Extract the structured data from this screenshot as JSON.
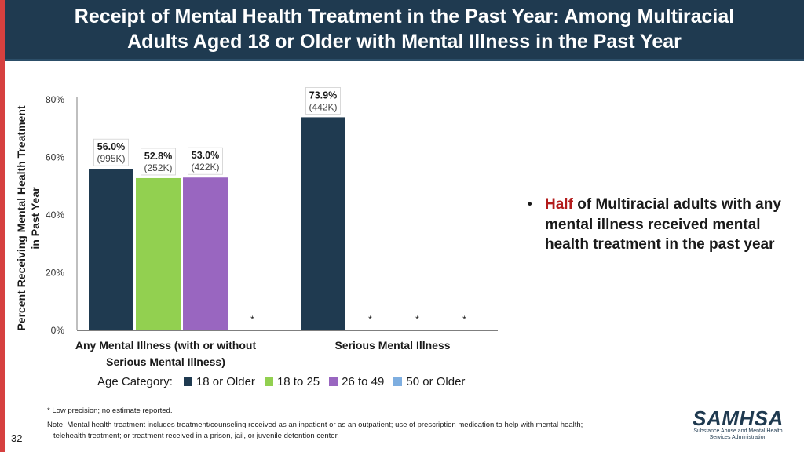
{
  "slide": {
    "title": "Receipt of Mental Health Treatment in the Past Year: Among Multiracial Adults Aged 18 or Older with Mental Illness in the Past Year",
    "page_number": "32",
    "bullet": {
      "highlight": "Half",
      "rest": "of Multiracial adults with any mental illness received mental health treatment in the past year"
    },
    "footnote": "* Low precision; no estimate reported.",
    "note_line1": "Note: Mental health treatment includes treatment/counseling received as an inpatient or as an outpatient; use of prescription medication to help with mental health;",
    "note_line2": "telehealth treatment; or treatment received in a prison, jail, or juvenile detention center.",
    "logo": {
      "wordmark": "SAMHSA",
      "tagline_line1": "Substance Abuse and Mental Health",
      "tagline_line2": "Services Administration"
    }
  },
  "chart_data": {
    "type": "bar",
    "title": "",
    "ylabel_line1": "Percent Receiving Mental Health Treatment",
    "ylabel_line2": "in Past Year",
    "xlabel": "",
    "ylim": [
      0,
      80
    ],
    "yticks": [
      0,
      20,
      40,
      60,
      80
    ],
    "ytick_labels": [
      "0%",
      "20%",
      "40%",
      "60%",
      "80%"
    ],
    "grid": false,
    "legend_title": "Age Category:",
    "legend_position": "bottom",
    "categories": [
      {
        "line1": "Any Mental Illness (with or without",
        "line2": "Serious Mental Illness)"
      },
      {
        "line1": "Serious Mental Illness",
        "line2": ""
      }
    ],
    "series": [
      {
        "name": "18 or Older",
        "color": "#1f3a50",
        "values": [
          56.0,
          73.9
        ],
        "value_labels": [
          "56.0%",
          "73.9%"
        ],
        "count_labels": [
          "(995K)",
          "(442K)"
        ],
        "suppressed": [
          false,
          false
        ]
      },
      {
        "name": "18 to 25",
        "color": "#92d050",
        "values": [
          52.8,
          null
        ],
        "value_labels": [
          "52.8%",
          ""
        ],
        "count_labels": [
          "(252K)",
          ""
        ],
        "suppressed": [
          false,
          true
        ]
      },
      {
        "name": "26 to 49",
        "color": "#9966c0",
        "values": [
          53.0,
          null
        ],
        "value_labels": [
          "53.0%",
          ""
        ],
        "count_labels": [
          "(422K)",
          ""
        ],
        "suppressed": [
          false,
          true
        ]
      },
      {
        "name": "50 or Older",
        "color": "#7eaee0",
        "values": [
          null,
          null
        ],
        "value_labels": [
          "",
          ""
        ],
        "count_labels": [
          "",
          ""
        ],
        "suppressed": [
          true,
          true
        ]
      }
    ],
    "suppressed_marker": "*"
  }
}
